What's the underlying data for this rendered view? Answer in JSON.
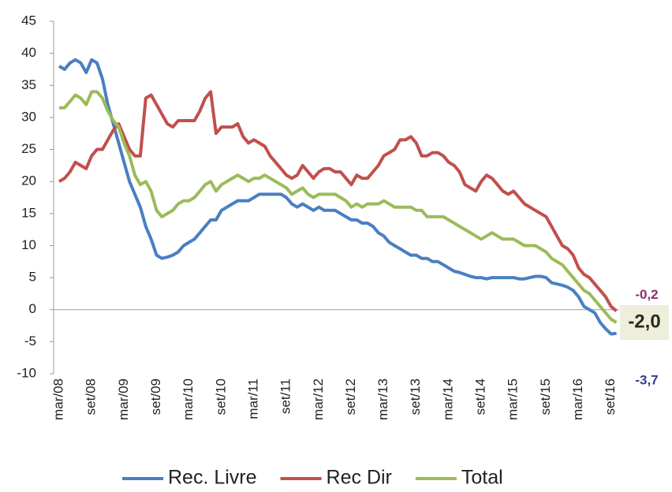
{
  "chart_data": {
    "type": "line",
    "categories": [
      "mar/08",
      null,
      null,
      null,
      null,
      null,
      "set/08",
      null,
      null,
      null,
      null,
      null,
      "mar/09",
      null,
      null,
      null,
      null,
      null,
      "set/09",
      null,
      null,
      null,
      null,
      null,
      "mar/10",
      null,
      null,
      null,
      null,
      null,
      "set/10",
      null,
      null,
      null,
      null,
      null,
      "mar/11",
      null,
      null,
      null,
      null,
      null,
      "set/11",
      null,
      null,
      null,
      null,
      null,
      "mar/12",
      null,
      null,
      null,
      null,
      null,
      "set/12",
      null,
      null,
      null,
      null,
      null,
      "mar/13",
      null,
      null,
      null,
      null,
      null,
      "set/13",
      null,
      null,
      null,
      null,
      null,
      "mar/14",
      null,
      null,
      null,
      null,
      null,
      "set/14",
      null,
      null,
      null,
      null,
      null,
      "mar/15",
      null,
      null,
      null,
      null,
      null,
      "set/15",
      null,
      null,
      null,
      null,
      null,
      "mar/16",
      null,
      null,
      null,
      null,
      null,
      "set/16",
      null
    ],
    "series": [
      {
        "name": "Rec. Livre",
        "color": "#4a7fc1",
        "last_label": "-3,7",
        "label_color": "#3b3b90",
        "values": [
          38,
          37.5,
          38.5,
          39,
          38.5,
          37,
          39,
          38.5,
          36,
          32,
          29,
          26,
          23,
          20,
          18,
          16,
          13,
          11,
          8.5,
          8,
          8.2,
          8.5,
          9,
          10,
          10.5,
          11,
          12,
          13,
          14,
          14,
          15.5,
          16,
          16.5,
          17,
          17,
          17,
          17.5,
          18,
          18,
          18,
          18,
          18,
          17.5,
          16.5,
          16,
          16.5,
          16,
          15.5,
          16,
          15.5,
          15.5,
          15.5,
          15,
          14.5,
          14,
          14,
          13.5,
          13.5,
          13,
          12,
          11.5,
          10.5,
          10,
          9.5,
          9,
          8.5,
          8.5,
          8,
          8,
          7.5,
          7.5,
          7,
          6.5,
          6,
          5.8,
          5.5,
          5.2,
          5,
          5,
          4.8,
          5,
          5,
          5,
          5,
          5,
          4.8,
          4.8,
          5,
          5.2,
          5.2,
          5,
          4.2,
          4,
          3.8,
          3.5,
          3,
          2,
          0.5,
          0,
          -0.5,
          -2,
          -3,
          -3.8,
          -3.7
        ]
      },
      {
        "name": "Rec Dir",
        "color": "#c0504d",
        "last_label": "-0,2",
        "label_color": "#8e2f72",
        "values": [
          20,
          20.5,
          21.5,
          23,
          22.5,
          22,
          24,
          25,
          25,
          26.5,
          28,
          29,
          27,
          25,
          24,
          24,
          33,
          33.5,
          32,
          30.5,
          29,
          28.5,
          29.5,
          29.5,
          29.5,
          29.5,
          31,
          33,
          34,
          27.5,
          28.5,
          28.5,
          28.5,
          29,
          27,
          26,
          26.5,
          26,
          25.5,
          24,
          23,
          22,
          21,
          20.5,
          21,
          22.5,
          21.5,
          20.5,
          21.5,
          22,
          22,
          21.5,
          21.5,
          20.5,
          19.5,
          21,
          20.5,
          20.5,
          21.5,
          22.5,
          24,
          24.5,
          25,
          26.5,
          26.5,
          27,
          26,
          24,
          24,
          24.5,
          24.5,
          24,
          23,
          22.5,
          21.5,
          19.5,
          19,
          18.5,
          20,
          21,
          20.5,
          19.5,
          18.5,
          18,
          18.5,
          17.5,
          16.5,
          16,
          15.5,
          15,
          14.5,
          13,
          11.5,
          10,
          9.5,
          8.5,
          6.5,
          5.5,
          5,
          4,
          3,
          2,
          0.5,
          -0.2
        ]
      },
      {
        "name": "Total",
        "color": "#9bbb59",
        "last_label": "-2,0",
        "label_color": "#2a2a1a",
        "label_box": "#eeeedc",
        "values": [
          31.5,
          31.5,
          32.5,
          33.5,
          33,
          32,
          34,
          34,
          33,
          31,
          29.5,
          28.5,
          26,
          24,
          21,
          19.5,
          20,
          18.5,
          15.5,
          14.5,
          15,
          15.5,
          16.5,
          17,
          17,
          17.5,
          18.5,
          19.5,
          20,
          18.5,
          19.5,
          20,
          20.5,
          21,
          20.5,
          20,
          20.5,
          20.5,
          21,
          20.5,
          20,
          19.5,
          19,
          18,
          18.5,
          19,
          18,
          17.5,
          18,
          18,
          18,
          18,
          17.5,
          17,
          16,
          16.5,
          16,
          16.5,
          16.5,
          16.5,
          17,
          16.5,
          16,
          16,
          16,
          16,
          15.5,
          15.5,
          14.5,
          14.5,
          14.5,
          14.5,
          14,
          13.5,
          13,
          12.5,
          12,
          11.5,
          11,
          11.5,
          12,
          11.5,
          11,
          11,
          11,
          10.5,
          10,
          10,
          10,
          9.5,
          9,
          8,
          7.5,
          7,
          6,
          5,
          4,
          3,
          2.5,
          1.5,
          0.5,
          -0.5,
          -1.5,
          -2.0
        ]
      }
    ],
    "ylim": [
      -10,
      45
    ],
    "yticks": [
      -10,
      -5,
      0,
      5,
      10,
      15,
      20,
      25,
      30,
      35,
      40,
      45
    ],
    "grid": false,
    "legend": "bottom"
  }
}
